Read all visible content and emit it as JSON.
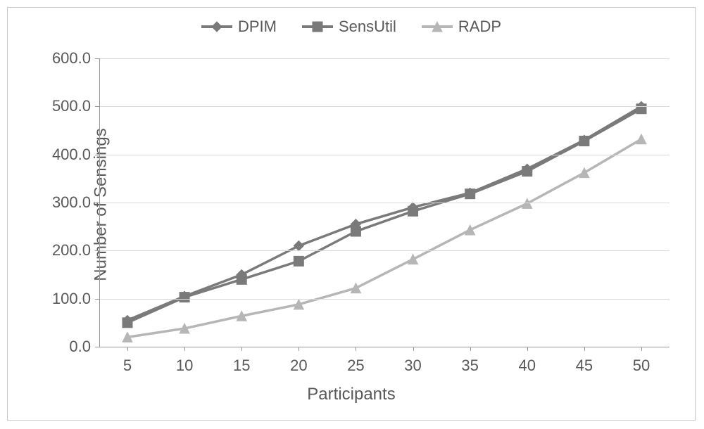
{
  "chart": {
    "type": "line",
    "background_color": "#ffffff",
    "border_color": "#c9c9c9",
    "grid_color": "#d9d9d9",
    "axis_color": "#989898",
    "text_color": "#595959",
    "legend_fontsize": 22,
    "tick_fontsize": 22,
    "label_fontsize": 24,
    "line_width": 3.5,
    "marker_size": 14,
    "x": {
      "label": "Participants",
      "categories": [
        "5",
        "10",
        "15",
        "20",
        "25",
        "30",
        "35",
        "40",
        "45",
        "50"
      ]
    },
    "y": {
      "label": "Number of Sensings",
      "min": 0,
      "max": 600,
      "tick_step": 100,
      "tick_format": ".1f"
    },
    "series": [
      {
        "name": "DPIM",
        "marker": "diamond",
        "color": "#7a7a7a",
        "values": [
          55,
          105,
          150,
          210,
          255,
          290,
          320,
          370,
          430,
          500
        ]
      },
      {
        "name": "SensUtil",
        "marker": "square",
        "color": "#7a7a7a",
        "values": [
          50,
          103,
          140,
          178,
          240,
          282,
          318,
          365,
          428,
          495
        ]
      },
      {
        "name": "RADP",
        "marker": "triangle",
        "color": "#b6b6b6",
        "values": [
          20,
          38,
          64,
          88,
          122,
          182,
          243,
          298,
          362,
          432
        ]
      }
    ]
  }
}
